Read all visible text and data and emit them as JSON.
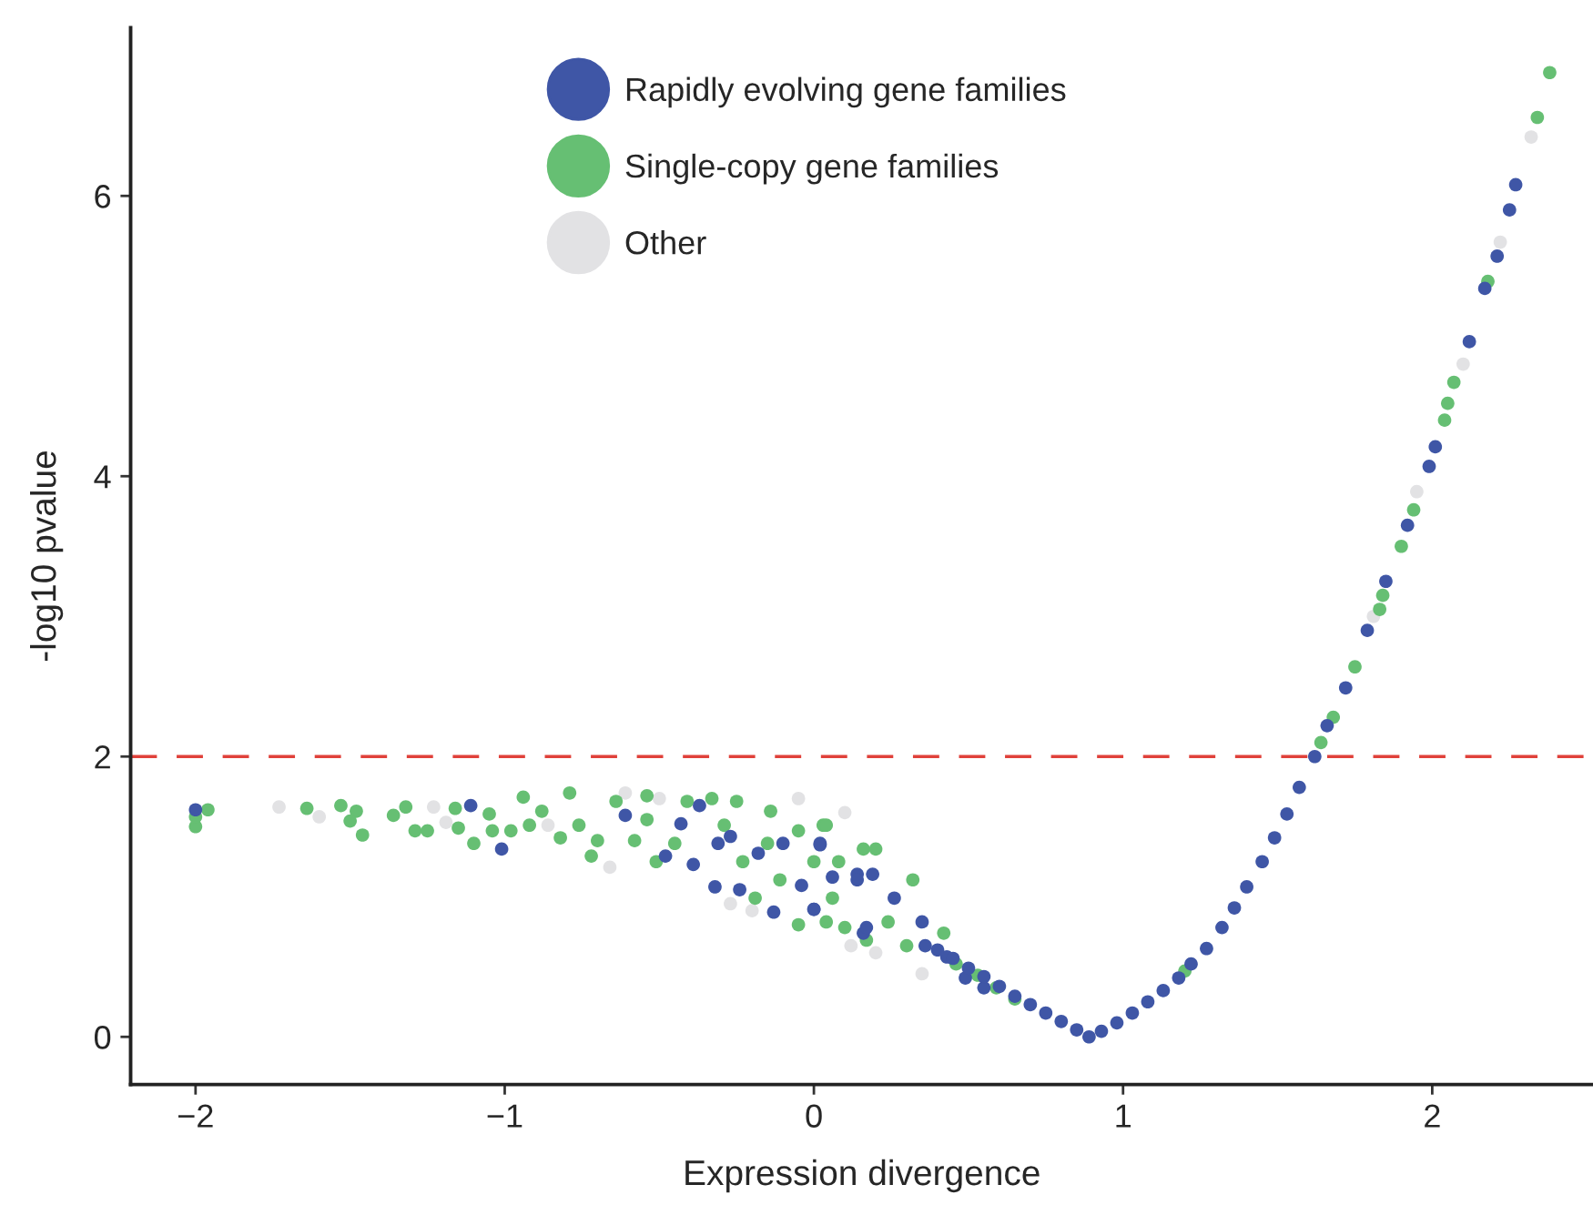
{
  "chart_data": {
    "type": "scatter",
    "xlabel": "Expression divergence",
    "ylabel": "-log10 pvalue",
    "xlim": [
      -2.21,
      2.52
    ],
    "ylim": [
      -0.34,
      7.2
    ],
    "xticks": [
      -2,
      -1,
      0,
      1,
      2
    ],
    "yticks": [
      0,
      2,
      4,
      6
    ],
    "grid": false,
    "legend": "top left",
    "marker": "circle",
    "ref_lines": [
      {
        "axis": "y",
        "value": 2,
        "color": "#e0413a",
        "line_style": "dashed"
      }
    ],
    "series": [
      {
        "name": "Other",
        "color": "#e2e2e4",
        "x": [
          -1.73,
          -1.6,
          -1.23,
          -1.19,
          -0.86,
          -0.66,
          -0.61,
          -0.5,
          -0.27,
          -0.2,
          -0.05,
          0.04,
          0.1,
          0.12,
          0.2,
          0.35,
          1.81,
          1.95,
          2.1,
          2.22,
          2.32
        ],
        "values": [
          1.64,
          1.57,
          1.64,
          1.53,
          1.51,
          1.21,
          1.74,
          1.7,
          0.95,
          0.9,
          1.7,
          null,
          1.6,
          0.65,
          0.6,
          0.45,
          3.0,
          3.89,
          4.8,
          5.67,
          6.42
        ]
      },
      {
        "name": "Single-copy gene families",
        "color": "#66bf73",
        "x": [
          -2.0,
          -2.0,
          -1.96,
          -1.64,
          -1.53,
          -1.48,
          -1.5,
          -1.46,
          -1.36,
          -1.32,
          -1.29,
          -1.25,
          -1.16,
          -1.15,
          -1.1,
          -1.05,
          -1.04,
          -0.98,
          -0.94,
          -0.92,
          -0.88,
          -0.82,
          -0.79,
          -0.76,
          -0.72,
          -0.7,
          -0.64,
          -0.58,
          -0.54,
          -0.54,
          -0.51,
          -0.45,
          -0.41,
          -0.33,
          -0.29,
          -0.23,
          -0.25,
          -0.19,
          -0.14,
          -0.15,
          -0.11,
          -0.05,
          -0.05,
          0.0,
          0.03,
          0.06,
          0.1,
          0.17,
          0.16,
          0.04,
          0.08,
          0.04,
          0.2,
          0.24,
          0.32,
          0.3,
          0.42,
          0.46,
          0.53,
          0.59,
          0.65,
          1.2,
          1.64,
          1.68,
          1.75,
          1.83,
          1.84,
          1.9,
          1.94,
          2.04,
          2.05,
          2.07,
          2.18,
          2.34,
          2.38
        ],
        "values": [
          1.5,
          1.57,
          1.62,
          1.63,
          1.65,
          1.61,
          1.54,
          1.44,
          1.58,
          1.64,
          1.47,
          1.47,
          1.63,
          1.49,
          1.38,
          1.59,
          1.47,
          1.47,
          1.71,
          1.51,
          1.61,
          1.42,
          1.74,
          1.51,
          1.29,
          1.4,
          1.68,
          1.4,
          1.55,
          1.72,
          1.25,
          1.38,
          1.68,
          1.7,
          1.51,
          1.25,
          1.68,
          0.99,
          1.61,
          1.38,
          1.12,
          1.47,
          0.8,
          1.25,
          1.51,
          0.99,
          0.78,
          0.69,
          1.34,
          1.51,
          1.25,
          0.82,
          1.34,
          0.82,
          1.12,
          0.65,
          0.74,
          0.52,
          0.44,
          0.35,
          0.27,
          0.47,
          2.1,
          2.28,
          2.64,
          3.05,
          3.15,
          3.5,
          3.76,
          4.4,
          4.52,
          4.67,
          5.39,
          6.56,
          6.88
        ]
      },
      {
        "name": "Rapidly evolving gene families",
        "color": "#3f56a6",
        "x": [
          -2.0,
          -1.11,
          -1.01,
          -0.61,
          -0.37,
          -0.43,
          -0.48,
          -0.31,
          -0.27,
          -0.39,
          -0.32,
          -0.24,
          -0.13,
          -0.1,
          -0.18,
          -0.04,
          0.0,
          0.02,
          0.06,
          0.16,
          0.14,
          0.02,
          0.0,
          0.14,
          0.19,
          0.26,
          0.17,
          0.36,
          0.49,
          0.35,
          0.43,
          0.55,
          0.4,
          0.45,
          0.5,
          0.55,
          0.6,
          0.65,
          0.7,
          0.75,
          0.8,
          0.85,
          0.89,
          0.93,
          0.98,
          1.03,
          1.08,
          1.13,
          1.18,
          1.22,
          1.27,
          1.32,
          1.36,
          1.4,
          1.45,
          1.49,
          1.53,
          1.57,
          1.62,
          1.66,
          1.72,
          1.79,
          1.85,
          1.92,
          1.99,
          2.01,
          2.12,
          2.17,
          2.21,
          2.25,
          2.27
        ],
        "values": [
          1.62,
          1.65,
          1.34,
          1.58,
          1.65,
          1.52,
          1.29,
          1.38,
          1.43,
          1.23,
          1.07,
          1.05,
          0.89,
          1.38,
          1.31,
          1.08,
          0.91,
          1.37,
          1.14,
          0.74,
          1.16,
          1.38,
          0.91,
          1.12,
          1.16,
          0.99,
          0.78,
          0.65,
          0.42,
          0.82,
          0.57,
          0.35,
          0.62,
          0.56,
          0.49,
          0.43,
          0.36,
          0.29,
          0.23,
          0.17,
          0.11,
          0.05,
          0.0,
          0.04,
          0.1,
          0.17,
          0.25,
          0.33,
          0.42,
          0.52,
          0.63,
          0.78,
          0.92,
          1.07,
          1.25,
          1.42,
          1.59,
          1.78,
          2.0,
          2.22,
          2.49,
          2.9,
          3.25,
          3.65,
          4.07,
          4.21,
          4.96,
          5.34,
          5.57,
          5.9,
          6.08
        ]
      }
    ]
  }
}
